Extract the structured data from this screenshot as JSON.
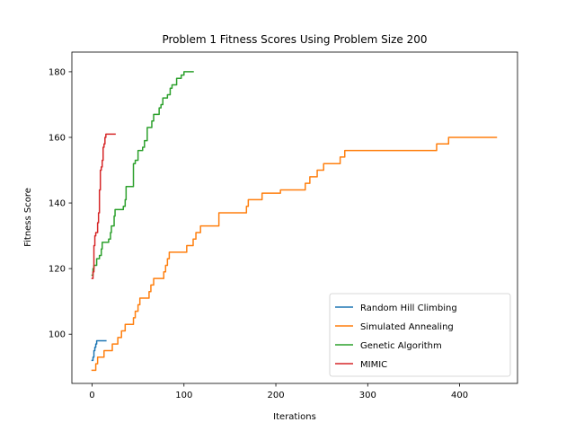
{
  "chart_data": {
    "type": "line",
    "title": "Problem 1 Fitness Scores Using Problem Size 200",
    "xlabel": "Iterations",
    "ylabel": "Fitness Score",
    "xlim": [
      -22,
      463
    ],
    "ylim": [
      85,
      186
    ],
    "xticks": [
      0,
      100,
      200,
      300,
      400
    ],
    "yticks": [
      100,
      120,
      140,
      160,
      180
    ],
    "grid": false,
    "legend_position": "lower-right",
    "series": [
      {
        "name": "Random Hill Climbing",
        "color": "#1f77b4",
        "points": [
          [
            0,
            92
          ],
          [
            1,
            92
          ],
          [
            1,
            93
          ],
          [
            2,
            93
          ],
          [
            2,
            95
          ],
          [
            3,
            95
          ],
          [
            3,
            96
          ],
          [
            4,
            96
          ],
          [
            4,
            97
          ],
          [
            5,
            97
          ],
          [
            5,
            98
          ],
          [
            15,
            98
          ]
        ]
      },
      {
        "name": "Simulated Annealing",
        "color": "#ff7f0e",
        "points": [
          [
            0,
            89
          ],
          [
            4,
            89
          ],
          [
            4,
            91
          ],
          [
            6,
            91
          ],
          [
            6,
            93
          ],
          [
            13,
            93
          ],
          [
            13,
            95
          ],
          [
            22,
            95
          ],
          [
            22,
            97
          ],
          [
            28,
            97
          ],
          [
            28,
            99
          ],
          [
            32,
            99
          ],
          [
            32,
            101
          ],
          [
            36,
            101
          ],
          [
            36,
            103
          ],
          [
            45,
            103
          ],
          [
            45,
            105
          ],
          [
            47,
            105
          ],
          [
            47,
            107
          ],
          [
            50,
            107
          ],
          [
            50,
            109
          ],
          [
            52,
            109
          ],
          [
            52,
            111
          ],
          [
            62,
            111
          ],
          [
            62,
            113
          ],
          [
            64,
            113
          ],
          [
            64,
            115
          ],
          [
            67,
            115
          ],
          [
            67,
            117
          ],
          [
            78,
            117
          ],
          [
            78,
            119
          ],
          [
            80,
            119
          ],
          [
            80,
            121
          ],
          [
            82,
            121
          ],
          [
            82,
            123
          ],
          [
            84,
            123
          ],
          [
            84,
            125
          ],
          [
            103,
            125
          ],
          [
            103,
            127
          ],
          [
            110,
            127
          ],
          [
            110,
            129
          ],
          [
            113,
            129
          ],
          [
            113,
            131
          ],
          [
            118,
            131
          ],
          [
            118,
            133
          ],
          [
            138,
            133
          ],
          [
            138,
            137
          ],
          [
            168,
            137
          ],
          [
            168,
            139
          ],
          [
            170,
            139
          ],
          [
            170,
            141
          ],
          [
            185,
            141
          ],
          [
            185,
            143
          ],
          [
            205,
            143
          ],
          [
            205,
            144
          ],
          [
            232,
            144
          ],
          [
            232,
            146
          ],
          [
            237,
            146
          ],
          [
            237,
            148
          ],
          [
            245,
            148
          ],
          [
            245,
            150
          ],
          [
            252,
            150
          ],
          [
            252,
            152
          ],
          [
            270,
            152
          ],
          [
            270,
            154
          ],
          [
            275,
            154
          ],
          [
            275,
            156
          ],
          [
            375,
            156
          ],
          [
            375,
            158
          ],
          [
            388,
            158
          ],
          [
            388,
            160
          ],
          [
            440,
            160
          ]
        ]
      },
      {
        "name": "Genetic Algorithm",
        "color": "#2ca02c",
        "points": [
          [
            0,
            118
          ],
          [
            1,
            118
          ],
          [
            1,
            120
          ],
          [
            2,
            120
          ],
          [
            2,
            121
          ],
          [
            5,
            121
          ],
          [
            5,
            123
          ],
          [
            8,
            123
          ],
          [
            8,
            124
          ],
          [
            10,
            124
          ],
          [
            10,
            126
          ],
          [
            11,
            126
          ],
          [
            11,
            128
          ],
          [
            18,
            128
          ],
          [
            18,
            129
          ],
          [
            20,
            129
          ],
          [
            20,
            131
          ],
          [
            21,
            131
          ],
          [
            21,
            133
          ],
          [
            24,
            133
          ],
          [
            24,
            136
          ],
          [
            25,
            136
          ],
          [
            25,
            138
          ],
          [
            34,
            138
          ],
          [
            34,
            139
          ],
          [
            36,
            139
          ],
          [
            36,
            141
          ],
          [
            37,
            141
          ],
          [
            37,
            145
          ],
          [
            45,
            145
          ],
          [
            45,
            152
          ],
          [
            47,
            152
          ],
          [
            47,
            153
          ],
          [
            50,
            153
          ],
          [
            50,
            156
          ],
          [
            55,
            156
          ],
          [
            55,
            157
          ],
          [
            57,
            157
          ],
          [
            57,
            159
          ],
          [
            60,
            159
          ],
          [
            60,
            163
          ],
          [
            65,
            163
          ],
          [
            65,
            165
          ],
          [
            67,
            165
          ],
          [
            67,
            167
          ],
          [
            73,
            167
          ],
          [
            73,
            169
          ],
          [
            75,
            169
          ],
          [
            75,
            170
          ],
          [
            77,
            170
          ],
          [
            77,
            172
          ],
          [
            82,
            172
          ],
          [
            82,
            173
          ],
          [
            85,
            173
          ],
          [
            85,
            175
          ],
          [
            87,
            175
          ],
          [
            87,
            176
          ],
          [
            92,
            176
          ],
          [
            92,
            178
          ],
          [
            97,
            178
          ],
          [
            97,
            179
          ],
          [
            100,
            179
          ],
          [
            100,
            180
          ],
          [
            110,
            180
          ]
        ]
      },
      {
        "name": "MIMIC",
        "color": "#d62728",
        "points": [
          [
            0,
            117
          ],
          [
            1,
            117
          ],
          [
            1,
            119
          ],
          [
            2,
            119
          ],
          [
            2,
            127
          ],
          [
            3,
            127
          ],
          [
            3,
            130
          ],
          [
            4,
            130
          ],
          [
            4,
            131
          ],
          [
            6,
            131
          ],
          [
            6,
            134
          ],
          [
            7,
            134
          ],
          [
            7,
            137
          ],
          [
            8,
            137
          ],
          [
            8,
            144
          ],
          [
            9,
            144
          ],
          [
            9,
            150
          ],
          [
            10,
            150
          ],
          [
            10,
            151
          ],
          [
            11,
            151
          ],
          [
            11,
            153
          ],
          [
            12,
            153
          ],
          [
            12,
            157
          ],
          [
            13,
            157
          ],
          [
            13,
            158
          ],
          [
            14,
            158
          ],
          [
            14,
            160
          ],
          [
            15,
            160
          ],
          [
            15,
            161
          ],
          [
            25,
            161
          ]
        ]
      }
    ]
  }
}
